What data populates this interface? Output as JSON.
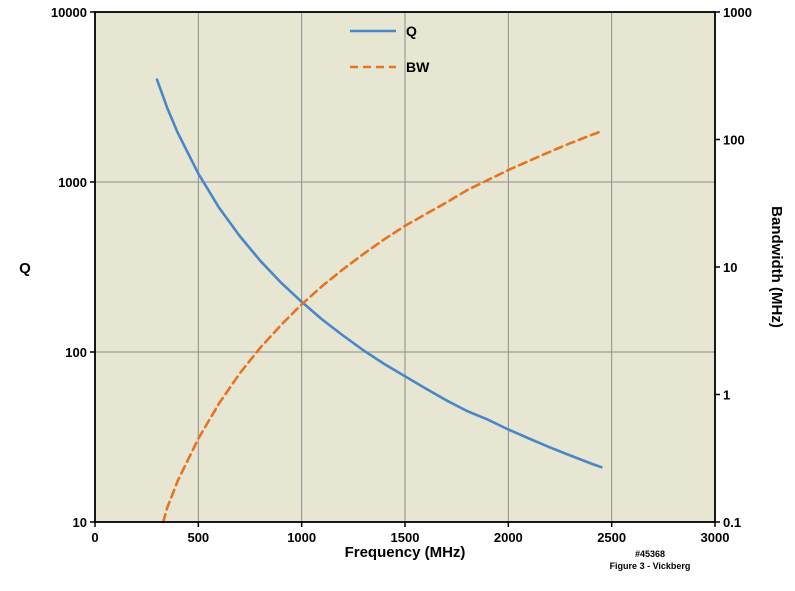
{
  "chart_data": {
    "type": "line",
    "title": "",
    "xlabel": "Frequency (MHz)",
    "ylabel_left": "Q",
    "ylabel_right": "Bandwidth (MHz)",
    "plot_bg": "#e7e6d3",
    "grid_color": "#8c8c8c",
    "border_color": "#000000",
    "legend_position": "top-center-inside",
    "x_axis": {
      "min": 0,
      "max": 3000,
      "ticks": [
        0,
        500,
        1000,
        1500,
        2000,
        2500,
        3000
      ],
      "gridlines": [
        500,
        1000,
        1500,
        2000,
        2500
      ]
    },
    "left_axis": {
      "scale": "log",
      "min": 10,
      "max": 10000,
      "ticks": [
        10000,
        1000,
        100,
        10
      ],
      "gridlines": [
        1000,
        100
      ]
    },
    "right_axis": {
      "scale": "log",
      "min": 0.1,
      "max": 1000,
      "ticks": [
        1000,
        100,
        10,
        1,
        0.1
      ]
    },
    "series": [
      {
        "name": "Q",
        "axis": "left",
        "color": "#4a86c8",
        "dash": "solid",
        "x": [
          300,
          350,
          400,
          500,
          600,
          700,
          800,
          900,
          1000,
          1100,
          1200,
          1300,
          1400,
          1500,
          1600,
          1700,
          1800,
          1900,
          2000,
          2100,
          2200,
          2300,
          2400,
          2450
        ],
        "values": [
          4000,
          2720,
          1950,
          1120,
          707,
          481,
          344,
          256,
          197,
          155,
          125,
          102,
          85,
          72,
          61,
          52,
          45,
          40,
          35,
          31,
          27.5,
          24.6,
          22.1,
          21
        ]
      },
      {
        "name": "BW",
        "axis": "right",
        "color": "#e8731f",
        "dash": "dashed",
        "x": [
          330,
          350,
          400,
          500,
          600,
          700,
          800,
          900,
          1000,
          1100,
          1200,
          1300,
          1400,
          1500,
          1600,
          1700,
          1800,
          1900,
          2000,
          2100,
          2200,
          2300,
          2400,
          2450
        ],
        "values": [
          0.1,
          0.13,
          0.21,
          0.45,
          0.85,
          1.46,
          2.33,
          3.5,
          5.1,
          7.1,
          9.6,
          12.7,
          16.5,
          21,
          26,
          32,
          40,
          48,
          57.5,
          68,
          80,
          93.5,
          108,
          116
        ]
      }
    ],
    "annotations": [
      "#45368",
      "Figure 3 - Vickberg"
    ]
  }
}
